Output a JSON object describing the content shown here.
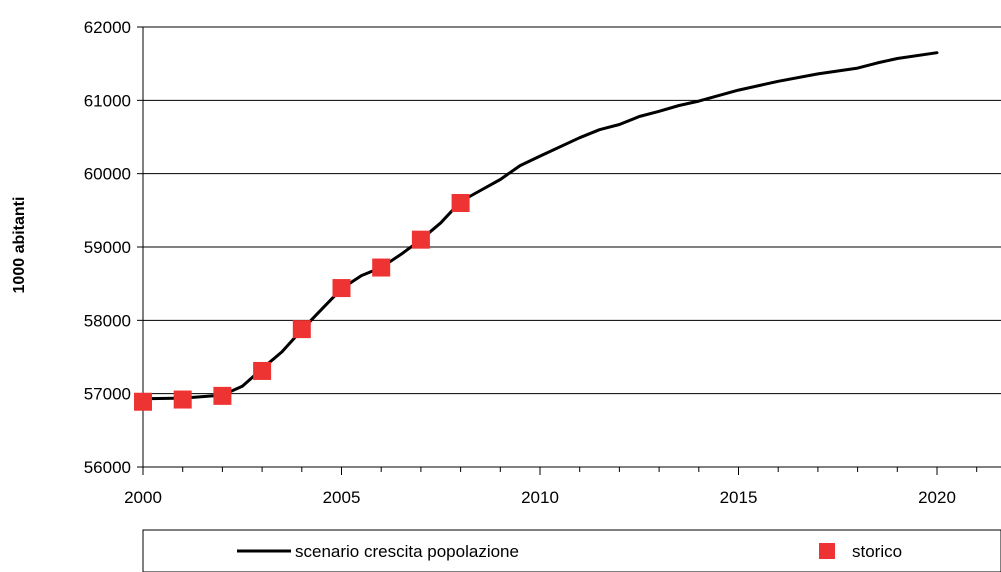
{
  "chart_data": {
    "type": "line",
    "title": "",
    "xlabel": "",
    "ylabel": "1000 abitanti",
    "xlim": [
      2000,
      2020
    ],
    "ylim": [
      56000,
      62000
    ],
    "x_ticks": [
      "2000",
      "2005",
      "2010",
      "2015",
      "2020"
    ],
    "y_ticks": [
      "56000",
      "57000",
      "58000",
      "59000",
      "60000",
      "61000",
      "62000"
    ],
    "grid": "horizontal",
    "legend_position": "bottom",
    "colors": {
      "line": "#000000",
      "marker": "#ee3333",
      "grid": "#000000"
    },
    "series": [
      {
        "name": "scenario crescita popolazione",
        "style": "line",
        "x": [
          2000,
          2001,
          2002,
          2002.5,
          2003,
          2003.5,
          2004,
          2004.5,
          2005,
          2005.5,
          2006,
          2006.5,
          2007,
          2007.5,
          2008,
          2008.5,
          2009,
          2009.5,
          2010,
          2011,
          2011.5,
          2012,
          2012.5,
          2013,
          2013.5,
          2014,
          2015,
          2016,
          2017,
          2018,
          2018.5,
          2019,
          2020
        ],
        "values": [
          56930,
          56940,
          56980,
          57100,
          57340,
          57570,
          57870,
          58150,
          58430,
          58610,
          58720,
          58900,
          59100,
          59330,
          59620,
          59770,
          59920,
          60110,
          60240,
          60490,
          60600,
          60670,
          60780,
          60850,
          60930,
          60990,
          61140,
          61260,
          61360,
          61440,
          61510,
          61570,
          61650
        ]
      },
      {
        "name": "storico",
        "style": "marker",
        "x": [
          2000,
          2001,
          2002,
          2003,
          2004,
          2005,
          2006,
          2007,
          2008
        ],
        "values": [
          56890,
          56920,
          56970,
          57310,
          57880,
          58440,
          58720,
          59100,
          59600
        ]
      }
    ]
  }
}
